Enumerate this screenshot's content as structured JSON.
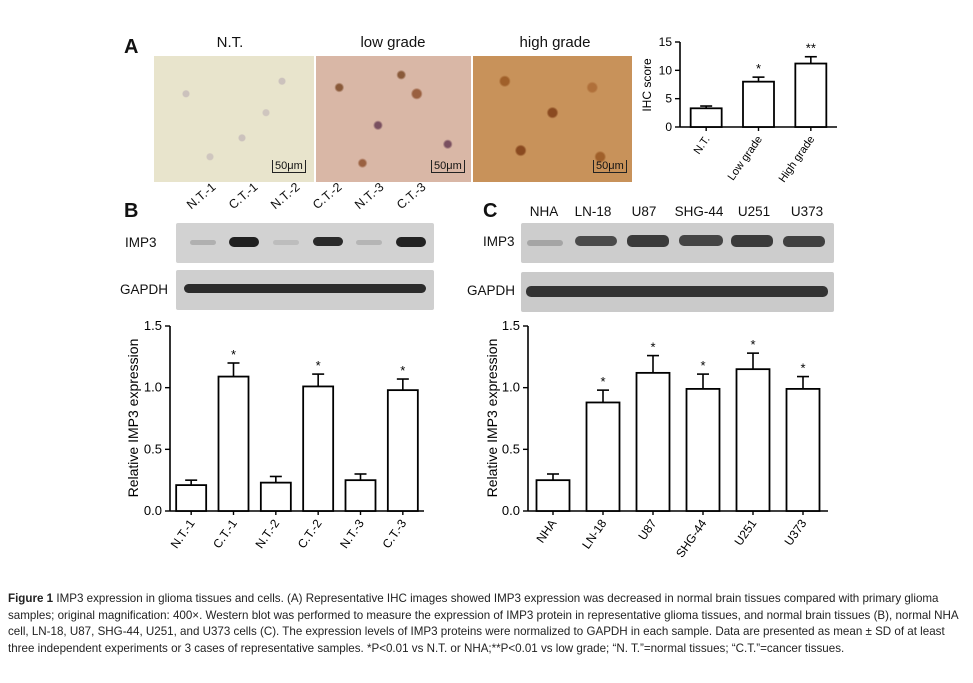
{
  "panelA": {
    "letter": "A",
    "images": [
      {
        "title": "N.T.",
        "scale": "50μm"
      },
      {
        "title": "low grade",
        "scale": "50μm"
      },
      {
        "title": "high grade",
        "scale": "50μm"
      }
    ]
  },
  "panelB": {
    "letter": "B",
    "lanes": [
      "N.T.-1",
      "C.T.-1",
      "N.T.-2",
      "C.T.-2",
      "N.T.-3",
      "C.T.-3"
    ],
    "rows": [
      "IMP3",
      "GAPDH"
    ]
  },
  "panelC": {
    "letter": "C",
    "lanes": [
      "NHA",
      "LN-18",
      "U87",
      "SHG-44",
      "U251",
      "U373"
    ],
    "rows": [
      "IMP3",
      "GAPDH"
    ]
  },
  "chart_data": [
    {
      "id": "ihc",
      "type": "bar",
      "categories": [
        "N.T.",
        "Low grade",
        "High grade"
      ],
      "values": [
        3.3,
        8.0,
        11.2
      ],
      "errors": [
        0.4,
        0.8,
        1.2
      ],
      "significance": [
        "",
        "*",
        "**"
      ],
      "ylabel": "IHC score",
      "ylim": [
        0,
        15
      ],
      "yticks": [
        "0",
        "5",
        "10",
        "15"
      ]
    },
    {
      "id": "tissue",
      "type": "bar",
      "categories": [
        "N.T.-1",
        "C.T.-1",
        "N.T.-2",
        "C.T.-2",
        "N.T.-3",
        "C.T.-3"
      ],
      "values": [
        0.21,
        1.09,
        0.23,
        1.01,
        0.25,
        0.98
      ],
      "errors": [
        0.04,
        0.11,
        0.05,
        0.1,
        0.05,
        0.09
      ],
      "significance": [
        "",
        "*",
        "",
        "*",
        "",
        "*"
      ],
      "ylabel": "Relative IMP3 expression",
      "ylim": [
        0,
        1.5
      ],
      "yticks": [
        "0.0",
        "0.5",
        "1.0",
        "1.5"
      ]
    },
    {
      "id": "cells",
      "type": "bar",
      "categories": [
        "NHA",
        "LN-18",
        "U87",
        "SHG-44",
        "U251",
        "U373"
      ],
      "values": [
        0.25,
        0.88,
        1.12,
        0.99,
        1.15,
        0.99
      ],
      "errors": [
        0.05,
        0.1,
        0.14,
        0.12,
        0.13,
        0.1
      ],
      "significance": [
        "",
        "*",
        "*",
        "*",
        "*",
        "*"
      ],
      "ylabel": "Relative IMP3 expression",
      "ylim": [
        0,
        1.5
      ],
      "yticks": [
        "0.0",
        "0.5",
        "1.0",
        "1.5"
      ]
    }
  ],
  "caption": {
    "label": "Figure 1",
    "text": "IMP3 expression in glioma tissues and cells. (A) Representative IHC images showed IMP3 expression was decreased in normal brain tissues compared with primary glioma samples; original magnification: 400×. Western blot was performed to measure the expression of IMP3 protein in representative glioma tissues, and normal brain tissues (B), normal NHA cell, LN-18, U87, SHG-44, U251, and U373 cells (C). The expression levels of IMP3 proteins were normalized to GAPDH in each sample. Data are presented as mean ± SD of at least three independent experiments or 3 cases of representative samples. *P<0.01 vs N.T. or NHA;**P<0.01 vs low grade; “N. T.”=normal tissues; “C.T.”=cancer tissues."
  }
}
